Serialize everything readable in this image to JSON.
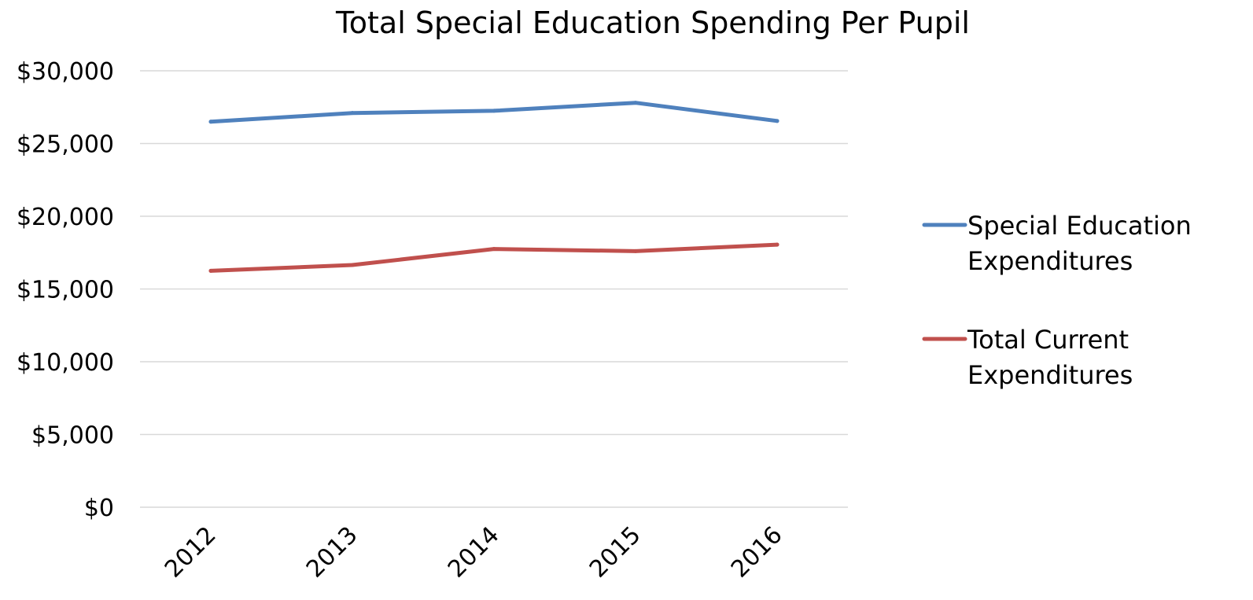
{
  "chart_data": {
    "type": "line",
    "title": "Total Special Education Spending Per Pupil",
    "xlabel": "",
    "ylabel": "",
    "categories": [
      "2012",
      "2013",
      "2014",
      "2015",
      "2016"
    ],
    "series": [
      {
        "name": "Special Education Expenditures",
        "name_lines": [
          "Special Education",
          "Expenditures"
        ],
        "color": "#4f81bd",
        "values": [
          26500,
          27100,
          27250,
          27800,
          26550
        ]
      },
      {
        "name": "Total Current Expenditures",
        "name_lines": [
          "Total Current",
          "Expenditures"
        ],
        "color": "#c0504d",
        "values": [
          16250,
          16650,
          17750,
          17600,
          18050
        ]
      }
    ],
    "ylim": [
      0,
      30000
    ],
    "yticks": [
      0,
      5000,
      10000,
      15000,
      20000,
      25000,
      30000
    ],
    "ytick_labels": [
      "$0",
      "$5,000",
      "$10,000",
      "$15,000",
      "$20,000",
      "$25,000",
      "$30,000"
    ],
    "grid": true,
    "legend_position": "right"
  }
}
